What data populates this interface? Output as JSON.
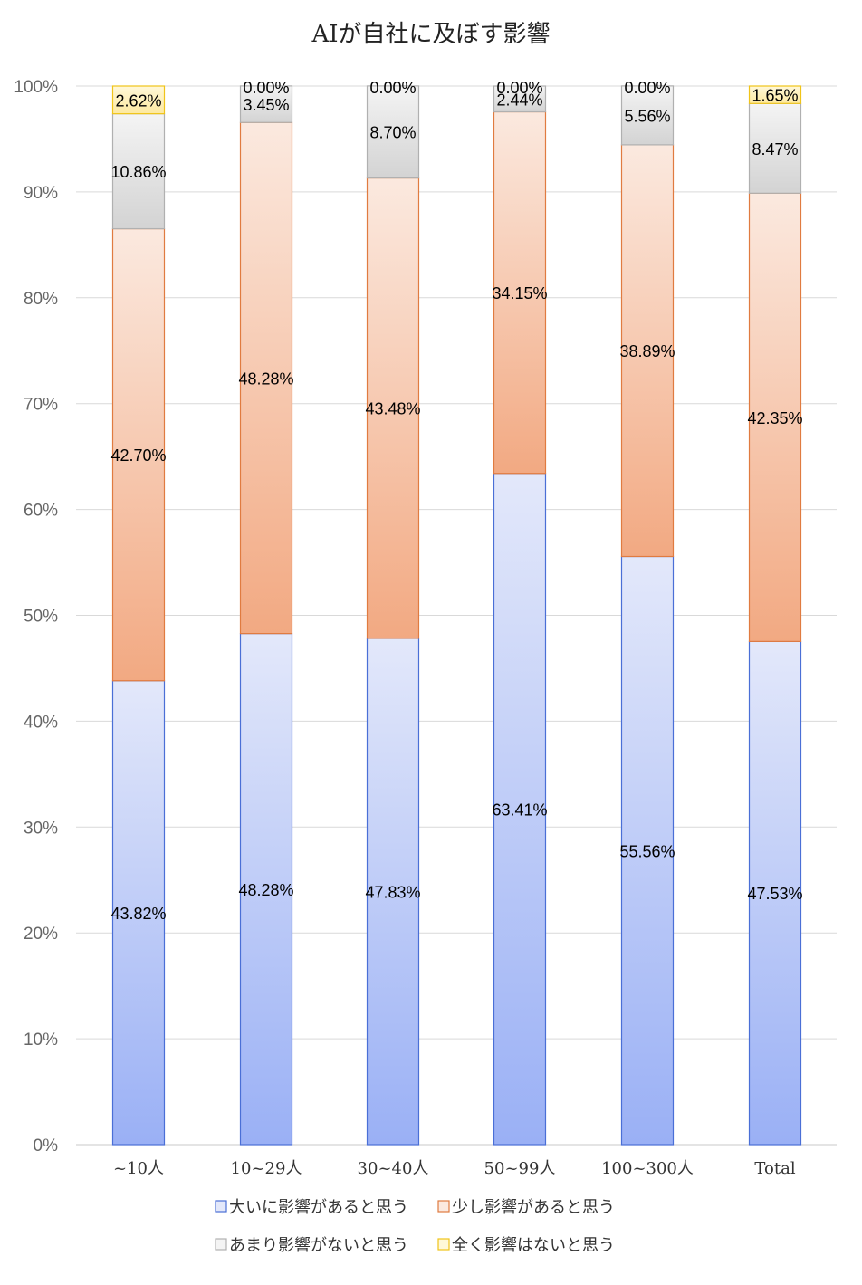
{
  "chart_data": {
    "type": "bar",
    "stacked": true,
    "title": "AIが自社に及ぼす影響",
    "categories": [
      "~10人",
      "10~29人",
      "30~40人",
      "50~99人",
      "100~300人",
      "Total"
    ],
    "series": [
      {
        "name": "大いに影響があると思う",
        "values": [
          43.82,
          48.28,
          47.83,
          63.41,
          55.56,
          47.53
        ],
        "labels": [
          "43.82%",
          "48.28%",
          "47.83%",
          "63.41%",
          "55.56%",
          "47.53%"
        ],
        "color_light": "#e3e8fa",
        "color_dark": "#9ab0f5",
        "stroke": "#4a6fd6"
      },
      {
        "name": "少し影響があると思う",
        "values": [
          42.7,
          48.28,
          43.48,
          34.15,
          38.89,
          42.35
        ],
        "labels": [
          "42.70%",
          "48.28%",
          "43.48%",
          "34.15%",
          "38.89%",
          "42.35%"
        ],
        "color_light": "#fbe9df",
        "color_dark": "#f2a982",
        "stroke": "#e07b40"
      },
      {
        "name": "あまり影響がないと思う",
        "values": [
          10.86,
          3.45,
          8.7,
          2.44,
          5.56,
          8.47
        ],
        "labels": [
          "10.86%",
          "3.45%",
          "8.70%",
          "2.44%",
          "5.56%",
          "8.47%"
        ],
        "color_light": "#f4f4f4",
        "color_dark": "#d3d3d3",
        "stroke": "#b0b0b0"
      },
      {
        "name": "全く影響はないと思う",
        "values": [
          2.62,
          0.0,
          0.0,
          0.0,
          0.0,
          1.65
        ],
        "labels": [
          "2.62%",
          "0.00%",
          "0.00%",
          "0.00%",
          "0.00%",
          "1.65%"
        ],
        "color_light": "#fff8d8",
        "color_dark": "#fde9a0",
        "stroke": "#f0c419"
      }
    ],
    "y_ticks": [
      "0%",
      "10%",
      "20%",
      "30%",
      "40%",
      "50%",
      "60%",
      "70%",
      "80%",
      "90%",
      "100%"
    ],
    "ylim": [
      0,
      100
    ],
    "grid": true,
    "legend_position": "bottom"
  }
}
